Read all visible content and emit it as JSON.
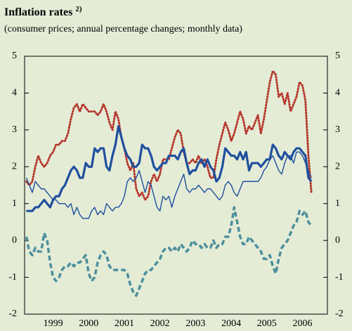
{
  "chart_data": {
    "type": "line",
    "title": "Inflation rates",
    "title_note": "2)",
    "subtitle": "(consumer prices; annual percentage changes; monthly data)",
    "background": "#e4ecd6",
    "x": [
      1998.75,
      1998.833,
      1998.917,
      1999.0,
      1999.083,
      1999.167,
      1999.25,
      1999.333,
      1999.417,
      1999.5,
      1999.583,
      1999.667,
      1999.75,
      1999.833,
      1999.917,
      2000.0,
      2000.083,
      2000.167,
      2000.25,
      2000.333,
      2000.417,
      2000.5,
      2000.583,
      2000.667,
      2000.75,
      2000.833,
      2000.917,
      2001.0,
      2001.083,
      2001.167,
      2001.25,
      2001.333,
      2001.417,
      2001.5,
      2001.583,
      2001.667,
      2001.75,
      2001.833,
      2001.917,
      2002.0,
      2002.083,
      2002.167,
      2002.25,
      2002.333,
      2002.417,
      2002.5,
      2002.583,
      2002.667,
      2002.75,
      2002.833,
      2002.917,
      2003.0,
      2003.083,
      2003.167,
      2003.25,
      2003.333,
      2003.417,
      2003.5,
      2003.583,
      2003.667,
      2003.75,
      2003.833,
      2003.917,
      2004.0,
      2004.083,
      2004.167,
      2004.25,
      2004.333,
      2004.417,
      2004.5,
      2004.583,
      2004.667,
      2004.75,
      2004.833,
      2004.917,
      2005.0,
      2005.083,
      2005.167,
      2005.25,
      2005.333,
      2005.417,
      2005.5,
      2005.583,
      2005.667,
      2005.75,
      2005.833,
      2005.917,
      2006.0,
      2006.083,
      2006.167,
      2006.25,
      2006.333,
      2006.417,
      2006.5,
      2006.583,
      2006.667,
      2006.75
    ],
    "series": [
      {
        "color": "#b5372c",
        "style": "dotted",
        "width": 3,
        "values": [
          1.6,
          1.5,
          1.6,
          2.0,
          2.3,
          2.1,
          2.0,
          2.1,
          2.3,
          2.4,
          2.6,
          2.6,
          2.7,
          2.7,
          2.9,
          3.3,
          3.6,
          3.7,
          3.5,
          3.7,
          3.6,
          3.5,
          3.5,
          3.5,
          3.4,
          3.5,
          3.7,
          3.5,
          3.2,
          3.0,
          3.5,
          3.3,
          2.8,
          2.5,
          2.1,
          1.9,
          2.1,
          1.4,
          1.2,
          1.3,
          1.1,
          1.2,
          1.6,
          1.8,
          1.6,
          1.8,
          2.2,
          2.2,
          2.2,
          2.5,
          2.8,
          3.0,
          2.9,
          2.4,
          2.1,
          2.1,
          2.2,
          2.1,
          2.3,
          2.1,
          2.2,
          2.0,
          1.7,
          1.7,
          2.2,
          2.6,
          2.9,
          3.2,
          3.0,
          2.7,
          2.9,
          3.2,
          3.5,
          3.3,
          2.9,
          3.1,
          3.0,
          3.2,
          3.4,
          2.9,
          3.3,
          3.8,
          4.3,
          4.6,
          4.5,
          3.9,
          4.0,
          3.7,
          4.0,
          3.5,
          3.7,
          3.9,
          4.3,
          4.2,
          3.8,
          2.3,
          1.3
        ]
      },
      {
        "color": "#4e8f9c",
        "style": "dashed",
        "width": 3.5,
        "values": [
          0.1,
          -0.3,
          -0.4,
          -0.2,
          -0.3,
          -0.3,
          0.2,
          0.0,
          -0.6,
          -1.0,
          -1.1,
          -1.0,
          -0.8,
          -0.7,
          -0.7,
          -0.6,
          -0.7,
          -0.6,
          -0.6,
          -0.5,
          -0.4,
          -0.9,
          -1.1,
          -1.0,
          -0.6,
          -0.4,
          -0.3,
          -0.4,
          -0.7,
          -0.8,
          -0.8,
          -0.8,
          -0.8,
          -0.8,
          -0.9,
          -1.2,
          -1.4,
          -1.5,
          -1.3,
          -1.1,
          -0.9,
          -0.8,
          -0.8,
          -0.7,
          -0.6,
          -0.5,
          -0.3,
          -0.2,
          -0.2,
          -0.3,
          -0.2,
          -0.3,
          -0.1,
          -0.2,
          -0.3,
          -0.2,
          0.0,
          -0.1,
          -0.1,
          -0.2,
          -0.1,
          -0.2,
          -0.2,
          0.0,
          -0.2,
          -0.1,
          -0.1,
          0.1,
          0.1,
          0.4,
          0.9,
          0.5,
          0.1,
          -0.1,
          -0.1,
          0.1,
          0.0,
          -0.1,
          -0.2,
          -0.3,
          -0.5,
          -0.5,
          -0.4,
          -0.7,
          -0.9,
          -0.5,
          -0.2,
          -0.1,
          0.0,
          0.2,
          0.4,
          0.5,
          0.8,
          0.7,
          0.8,
          0.5,
          0.4
        ]
      },
      {
        "color": "#1f4f9e",
        "style": "solid",
        "width": 1.4,
        "values": [
          1.7,
          1.5,
          1.3,
          1.6,
          1.5,
          1.4,
          1.4,
          1.3,
          1.2,
          1.1,
          1.1,
          1.0,
          1.0,
          1.0,
          0.9,
          1.0,
          0.7,
          0.9,
          0.7,
          0.6,
          0.6,
          0.6,
          0.8,
          0.9,
          0.7,
          0.8,
          0.7,
          1.0,
          0.9,
          0.8,
          0.9,
          0.9,
          1.0,
          1.2,
          1.6,
          1.7,
          1.6,
          1.7,
          1.9,
          1.6,
          1.3,
          1.6,
          1.5,
          1.2,
          0.9,
          0.8,
          1.2,
          1.1,
          1.2,
          0.9,
          1.2,
          1.4,
          1.6,
          1.8,
          1.4,
          1.3,
          1.4,
          1.4,
          1.5,
          1.4,
          1.3,
          1.4,
          1.4,
          1.3,
          1.2,
          1.1,
          1.2,
          1.5,
          1.6,
          1.5,
          1.3,
          1.2,
          1.4,
          1.6,
          1.6,
          1.6,
          1.6,
          1.6,
          1.6,
          1.7,
          1.9,
          2.0,
          2.2,
          2.3,
          2.1,
          1.9,
          1.8,
          2.1,
          2.3,
          2.3,
          2.1,
          2.4,
          2.4,
          2.3,
          2.1,
          1.9,
          1.7
        ]
      },
      {
        "color": "#1f4f9e",
        "style": "solid",
        "width": 3.2,
        "values": [
          0.8,
          0.8,
          0.8,
          0.9,
          0.9,
          1.0,
          1.1,
          1.0,
          0.9,
          1.1,
          1.2,
          1.2,
          1.4,
          1.5,
          1.7,
          1.9,
          2.0,
          1.9,
          1.7,
          1.7,
          2.1,
          2.0,
          2.0,
          2.5,
          2.4,
          2.5,
          2.5,
          2.0,
          1.9,
          2.3,
          2.6,
          3.1,
          2.8,
          2.5,
          2.3,
          2.2,
          2.0,
          2.0,
          2.1,
          2.6,
          2.5,
          2.5,
          2.3,
          2.0,
          1.9,
          2.0,
          2.1,
          2.1,
          2.3,
          2.3,
          2.3,
          2.2,
          2.4,
          2.5,
          2.1,
          1.8,
          1.9,
          1.9,
          2.1,
          2.2,
          2.0,
          2.2,
          2.0,
          1.9,
          1.6,
          1.7,
          2.0,
          2.5,
          2.4,
          2.3,
          2.3,
          2.2,
          2.4,
          2.2,
          2.4,
          1.9,
          2.1,
          2.1,
          2.1,
          2.0,
          2.1,
          2.2,
          2.2,
          2.6,
          2.5,
          2.3,
          2.2,
          2.4,
          2.3,
          2.2,
          2.4,
          2.5,
          2.5,
          2.4,
          2.3,
          1.7,
          1.6
        ]
      }
    ],
    "xlim": [
      1998.7,
      2007.2
    ],
    "xticks": [
      {
        "value": 1999.5,
        "label": "1999"
      },
      {
        "value": 2000.5,
        "label": "2000"
      },
      {
        "value": 2001.5,
        "label": "2001"
      },
      {
        "value": 2002.5,
        "label": "2002"
      },
      {
        "value": 2003.5,
        "label": "2003"
      },
      {
        "value": 2004.5,
        "label": "2004"
      },
      {
        "value": 2005.5,
        "label": "2005"
      },
      {
        "value": 2006.5,
        "label": "2006"
      }
    ],
    "ylim": [
      -2,
      5
    ],
    "yticks": [
      -2,
      -1,
      0,
      1,
      2,
      3,
      4,
      5
    ],
    "grid": false
  }
}
